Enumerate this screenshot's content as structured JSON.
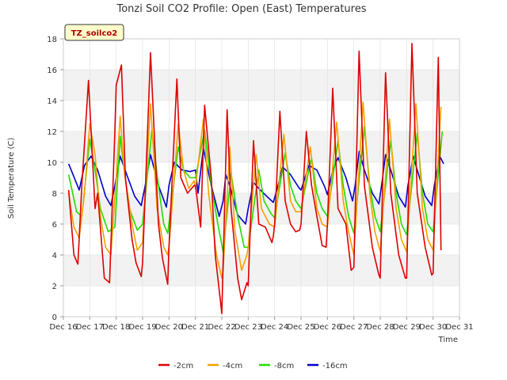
{
  "chart_data": {
    "type": "line",
    "title": "Tonzi Soil CO2 Profile: Open (East) Temperatures",
    "xlabel": "Time",
    "ylabel": "Soil Temperature (C)",
    "badge": "TZ_soilco2",
    "xlim": [
      16,
      31
    ],
    "ylim": [
      0,
      18
    ],
    "x_ticks": [
      16,
      17,
      18,
      19,
      20,
      21,
      22,
      23,
      24,
      25,
      26,
      27,
      28,
      29,
      30,
      31
    ],
    "x_tick_labels": [
      "Dec 16",
      "Dec 17",
      "Dec 18",
      "Dec 19",
      "Dec 20",
      "Dec 21",
      "Dec 22",
      "Dec 23",
      "Dec 24",
      "Dec 25",
      "Dec 26",
      "Dec 27",
      "Dec 28",
      "Dec 29",
      "Dec 30",
      "Dec 31"
    ],
    "y_ticks": [
      0,
      2,
      4,
      6,
      8,
      10,
      12,
      14,
      16,
      18
    ],
    "y_tick_labels": [
      "0",
      "2",
      "4",
      "6",
      "8",
      "10",
      "12",
      "14",
      "16",
      "18"
    ],
    "colors": {
      "band": "#f2f2f2",
      "grid": "#dddddd",
      "axis": "#cccccc",
      "badge_bg": "#ffffcc"
    },
    "series": [
      {
        "name": "-2cm",
        "color": "#dd0000",
        "x": [
          16.2,
          16.4,
          16.55,
          16.7,
          16.95,
          17.05,
          17.2,
          17.3,
          17.55,
          17.75,
          17.95,
          18.0,
          18.2,
          18.35,
          18.6,
          18.75,
          18.95,
          19.0,
          19.3,
          19.6,
          19.75,
          19.95,
          20.0,
          20.3,
          20.45,
          20.7,
          20.95,
          21.0,
          21.2,
          21.35,
          21.6,
          21.75,
          21.85,
          21.95,
          22.0,
          22.2,
          22.35,
          22.6,
          22.75,
          22.95,
          23.0,
          23.2,
          23.4,
          23.65,
          23.9,
          23.95,
          24.0,
          24.2,
          24.4,
          24.6,
          24.8,
          24.95,
          25.0,
          25.2,
          25.4,
          25.6,
          25.8,
          25.95,
          26.0,
          26.2,
          26.4,
          26.7,
          26.9,
          27.0,
          27.2,
          27.4,
          27.7,
          27.95,
          28.0,
          28.2,
          28.4,
          28.7,
          28.95,
          29.0,
          29.2,
          29.4,
          29.7,
          29.95,
          30.0,
          30.2,
          30.3
        ],
        "y": [
          8.2,
          4.0,
          3.4,
          8.5,
          15.3,
          12.0,
          7.0,
          8.0,
          2.5,
          2.2,
          12.0,
          15.0,
          16.3,
          9.0,
          5.0,
          3.5,
          2.6,
          3.5,
          17.1,
          6.0,
          3.8,
          2.1,
          4.5,
          15.4,
          9.0,
          8.0,
          8.5,
          8.5,
          5.8,
          13.7,
          9.0,
          4.0,
          2.5,
          1.0,
          0.2,
          13.4,
          7.0,
          2.5,
          1.1,
          2.2,
          2.0,
          11.4,
          6.0,
          5.8,
          4.8,
          5.2,
          6.0,
          13.3,
          7.5,
          6.0,
          5.5,
          5.6,
          6.0,
          12.0,
          8.5,
          6.5,
          4.6,
          4.5,
          6.0,
          14.8,
          7.0,
          6.0,
          3.0,
          3.2,
          17.2,
          8.5,
          4.5,
          2.7,
          2.5,
          15.8,
          8.0,
          4.0,
          2.5,
          2.5,
          17.7,
          8.0,
          4.5,
          2.7,
          2.8,
          16.8,
          4.3
        ]
      },
      {
        "name": "-4cm",
        "color": "#f5a000",
        "x": [
          16.2,
          16.4,
          16.6,
          16.8,
          17.0,
          17.2,
          17.4,
          17.6,
          17.8,
          18.0,
          18.15,
          18.3,
          18.6,
          18.8,
          19.0,
          19.3,
          19.55,
          19.8,
          19.95,
          20.0,
          20.35,
          20.55,
          20.75,
          20.95,
          21.0,
          21.3,
          21.5,
          21.8,
          22.0,
          22.05,
          22.3,
          22.5,
          22.75,
          22.95,
          23.0,
          23.3,
          23.5,
          23.8,
          24.0,
          24.35,
          24.6,
          24.8,
          25.0,
          25.35,
          25.6,
          25.8,
          26.0,
          26.35,
          26.6,
          26.8,
          27.0,
          27.35,
          27.6,
          27.8,
          28.0,
          28.35,
          28.6,
          28.8,
          29.0,
          29.35,
          29.6,
          29.8,
          30.0,
          30.3
        ],
        "y": [
          8.0,
          5.8,
          5.1,
          8.0,
          12.5,
          10.5,
          6.5,
          4.5,
          4.0,
          9.0,
          13.0,
          9.5,
          6.0,
          4.3,
          4.8,
          13.8,
          7.0,
          4.5,
          4.0,
          4.5,
          12.5,
          9.5,
          8.3,
          8.8,
          8.3,
          12.8,
          8.0,
          4.0,
          2.5,
          3.0,
          11.0,
          5.5,
          3.0,
          4.0,
          4.5,
          10.5,
          7.0,
          6.0,
          5.8,
          11.8,
          7.5,
          6.8,
          6.8,
          11.0,
          7.0,
          6.0,
          5.8,
          12.6,
          7.5,
          5.5,
          4.0,
          13.9,
          8.0,
          5.5,
          4.2,
          12.8,
          7.0,
          5.0,
          4.2,
          13.8,
          7.0,
          5.0,
          4.3,
          13.6
        ]
      },
      {
        "name": "-8cm",
        "color": "#22dd00",
        "x": [
          16.2,
          16.5,
          16.7,
          17.0,
          17.2,
          17.4,
          17.7,
          17.95,
          18.15,
          18.3,
          18.5,
          18.8,
          19.0,
          19.35,
          19.6,
          19.8,
          19.95,
          20.35,
          20.55,
          20.8,
          21.0,
          21.35,
          21.6,
          21.85,
          22.05,
          22.35,
          22.6,
          22.85,
          23.0,
          23.4,
          23.6,
          23.85,
          24.0,
          24.4,
          24.6,
          24.8,
          25.0,
          25.4,
          25.6,
          25.8,
          26.0,
          26.4,
          26.6,
          26.8,
          27.0,
          27.4,
          27.6,
          27.8,
          28.0,
          28.4,
          28.6,
          28.8,
          29.0,
          29.4,
          29.6,
          29.8,
          30.0,
          30.35
        ],
        "y": [
          9.2,
          6.8,
          6.5,
          11.5,
          9.5,
          7.0,
          5.5,
          5.8,
          11.7,
          9.5,
          7.0,
          5.6,
          6.0,
          12.1,
          8.5,
          6.0,
          5.4,
          11.0,
          9.5,
          9.0,
          9.0,
          12.1,
          8.5,
          6.0,
          4.2,
          9.3,
          6.5,
          4.5,
          4.5,
          9.5,
          7.5,
          6.7,
          6.4,
          10.6,
          8.5,
          7.5,
          7.0,
          10.3,
          8.0,
          7.0,
          6.5,
          11.4,
          8.5,
          6.5,
          5.4,
          12.3,
          8.5,
          6.5,
          5.5,
          11.4,
          8.0,
          6.0,
          5.3,
          11.9,
          8.0,
          6.0,
          5.5,
          12.0
        ]
      },
      {
        "name": "-16cm",
        "color": "#0000cc",
        "x": [
          16.2,
          16.6,
          16.8,
          17.05,
          17.3,
          17.6,
          17.8,
          17.95,
          18.15,
          18.4,
          18.7,
          18.95,
          19.1,
          19.3,
          19.6,
          19.9,
          20.0,
          20.2,
          20.5,
          20.8,
          21.0,
          21.1,
          21.3,
          21.6,
          21.9,
          22.05,
          22.15,
          22.3,
          22.6,
          22.9,
          23.0,
          23.2,
          23.4,
          23.7,
          23.95,
          24.1,
          24.3,
          24.6,
          24.9,
          25.0,
          25.3,
          25.6,
          25.9,
          26.0,
          26.2,
          26.4,
          26.7,
          26.95,
          27.05,
          27.2,
          27.4,
          27.7,
          27.95,
          28.05,
          28.2,
          28.4,
          28.7,
          28.95,
          29.05,
          29.25,
          29.4,
          29.7,
          29.95,
          30.05,
          30.25,
          30.4
        ],
        "y": [
          9.9,
          8.2,
          9.8,
          10.4,
          9.5,
          7.8,
          7.2,
          8.5,
          10.4,
          9.2,
          7.8,
          7.2,
          8.5,
          10.5,
          8.5,
          7.1,
          8.5,
          10.0,
          9.5,
          9.4,
          9.5,
          8.0,
          10.9,
          8.5,
          6.5,
          7.5,
          9.2,
          8.5,
          6.6,
          6.0,
          7.0,
          8.7,
          8.3,
          7.8,
          7.4,
          8.3,
          9.7,
          9.2,
          8.4,
          8.2,
          9.8,
          9.5,
          8.4,
          7.9,
          9.5,
          10.3,
          9.0,
          7.5,
          8.5,
          10.7,
          9.5,
          8.0,
          7.3,
          8.5,
          10.5,
          9.5,
          7.8,
          7.1,
          8.5,
          10.4,
          9.5,
          7.8,
          7.2,
          8.5,
          10.4,
          9.9
        ]
      }
    ]
  }
}
